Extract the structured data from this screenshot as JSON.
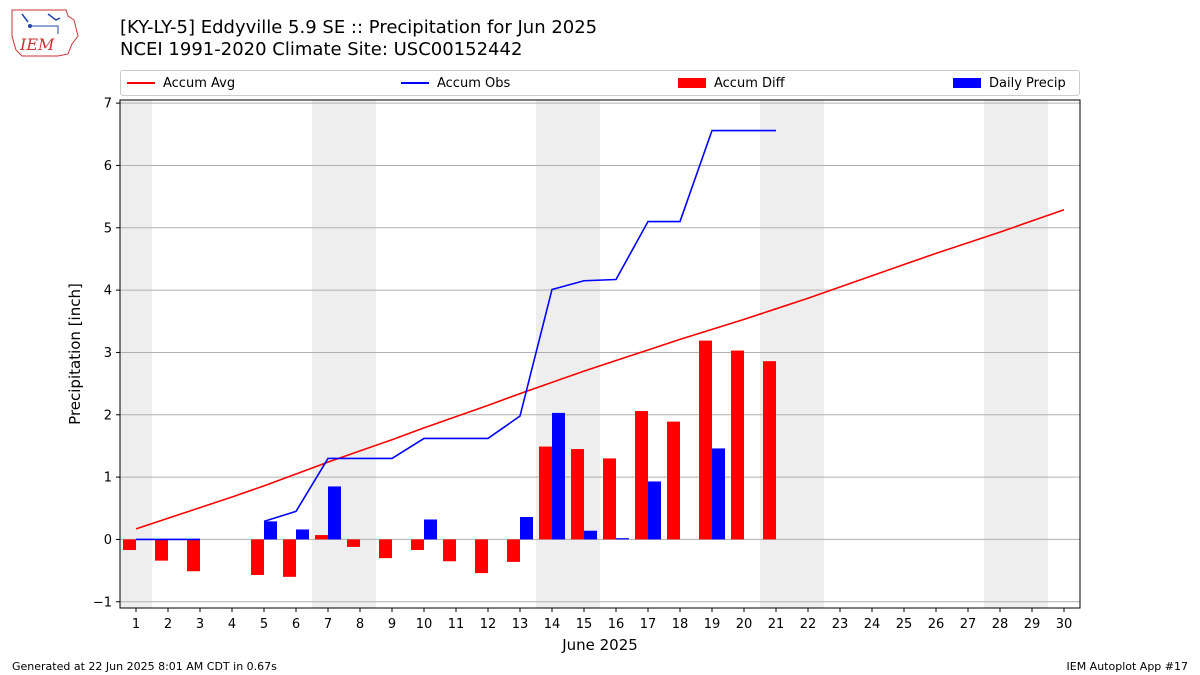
{
  "header": {
    "title_line1": "[KY-LY-5] Eddyville 5.9 SE :: Precipitation for Jun 2025",
    "title_line2": "NCEI 1991-2020 Climate Site: USC00152442",
    "logo_text": "IEM"
  },
  "footer": {
    "left": "Generated at 22 Jun 2025 8:01 AM CDT in 0.67s",
    "right": "IEM Autoplot App #17"
  },
  "colors": {
    "avg": "#ff0000",
    "obs": "#0000ff",
    "diff": "#ff0000",
    "daily": "#0000ff",
    "weekend_band": "#eeeeee",
    "grid": "#b0b0b0"
  },
  "chart_data": {
    "type": "bar",
    "title": "[KY-LY-5] Eddyville 5.9 SE :: Precipitation for Jun 2025",
    "xlabel": "June 2025",
    "ylabel": "Precipitation [inch]",
    "xlim": [
      0.5,
      30.5
    ],
    "ylim": [
      -1.1,
      7.05
    ],
    "x_ticks": [
      1,
      2,
      3,
      4,
      5,
      6,
      7,
      8,
      9,
      10,
      11,
      12,
      13,
      14,
      15,
      16,
      17,
      18,
      19,
      20,
      21,
      22,
      23,
      24,
      25,
      26,
      27,
      28,
      29,
      30
    ],
    "y_ticks": [
      -1,
      0,
      1,
      2,
      3,
      4,
      5,
      6,
      7
    ],
    "grid": "horizontal",
    "legend_position": "top",
    "weekend_bands": [
      [
        0.5,
        1.5
      ],
      [
        6.5,
        8.5
      ],
      [
        13.5,
        15.5
      ],
      [
        20.5,
        22.5
      ],
      [
        27.5,
        29.5
      ]
    ],
    "legend": [
      "Accum Avg",
      "Accum Obs",
      "Accum Diff",
      "Daily Precip"
    ],
    "series": [
      {
        "name": "Accum Avg",
        "kind": "line",
        "x": [
          1,
          2,
          3,
          4,
          5,
          6,
          7,
          8,
          9,
          10,
          11,
          12,
          13,
          14,
          15,
          16,
          17,
          18,
          19,
          20,
          21,
          22,
          23,
          24,
          25,
          26,
          27,
          28,
          29,
          30
        ],
        "values": [
          0.17,
          0.34,
          0.51,
          0.68,
          0.86,
          1.05,
          1.24,
          1.42,
          1.6,
          1.79,
          1.97,
          2.15,
          2.34,
          2.52,
          2.7,
          2.87,
          3.04,
          3.21,
          3.37,
          3.53,
          3.7,
          3.87,
          4.05,
          4.23,
          4.41,
          4.59,
          4.76,
          4.93,
          5.11,
          5.29
        ]
      },
      {
        "name": "Accum Obs",
        "kind": "line",
        "segments": [
          {
            "x": [
              1,
              2,
              3
            ],
            "values": [
              0.0,
              0.0,
              0.0
            ]
          },
          {
            "x": [
              5,
              6,
              7,
              8,
              9,
              10,
              11,
              12,
              13,
              14,
              15,
              16,
              17,
              18,
              19,
              20,
              21
            ],
            "values": [
              0.29,
              0.45,
              1.3,
              1.3,
              1.3,
              1.62,
              1.62,
              1.62,
              1.98,
              4.01,
              4.15,
              4.17,
              5.1,
              5.1,
              6.56,
              6.56,
              6.56
            ]
          }
        ]
      },
      {
        "name": "Accum Diff",
        "kind": "bar",
        "x": [
          1,
          2,
          3,
          5,
          6,
          7,
          8,
          9,
          10,
          11,
          12,
          13,
          14,
          15,
          16,
          17,
          18,
          19,
          20,
          21
        ],
        "values": [
          -0.17,
          -0.34,
          -0.51,
          -0.57,
          -0.6,
          0.07,
          -0.12,
          -0.3,
          -0.17,
          -0.35,
          -0.54,
          -0.36,
          1.49,
          1.45,
          1.3,
          2.06,
          1.89,
          3.19,
          3.03,
          2.86
        ]
      },
      {
        "name": "Daily Precip",
        "kind": "bar",
        "x": [
          1,
          2,
          3,
          5,
          6,
          7,
          8,
          9,
          10,
          11,
          12,
          13,
          14,
          15,
          16,
          17,
          18,
          19,
          20,
          21
        ],
        "values": [
          0.0,
          0.0,
          0.0,
          0.29,
          0.16,
          0.85,
          0.0,
          0.0,
          0.32,
          0.0,
          0.0,
          0.36,
          2.03,
          0.14,
          0.02,
          0.93,
          0.0,
          1.46,
          0.0,
          0.0
        ]
      }
    ]
  }
}
